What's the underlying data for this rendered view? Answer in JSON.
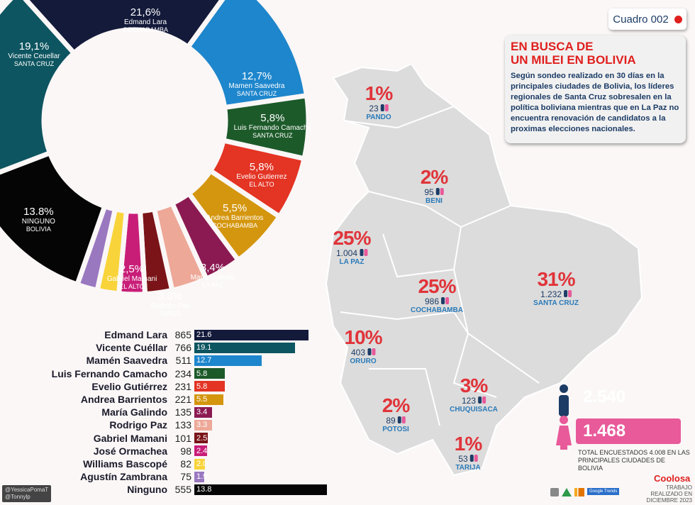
{
  "header": {
    "cuadro": "Cuadro 002",
    "title_line1": "EN BUSCA DE",
    "title_line2": "UN MILEI EN BOLIVIA",
    "description": "Según sondeo realizado en 30 días en la principales ciudades de Bolivia, los líderes regionales de Santa Cruz sobresalen en la política boliviana mientras que en La Paz no encuentra renovación de candidatos a la proximas elecciones nacionales."
  },
  "chart_data": [
    {
      "type": "pie",
      "variant": "donut",
      "slices": [
        {
          "name": "Edmand Lara",
          "region": "COCHABAMBA",
          "value": 21.6,
          "label": "21,6%",
          "color": "#131a3a"
        },
        {
          "name": "Mamen Saavedra",
          "region": "SANTA CRUZ",
          "value": 12.7,
          "label": "12,7%",
          "color": "#1e86cc"
        },
        {
          "name": "Luis Fernando Camacho",
          "region": "SANTA CRUZ",
          "value": 5.8,
          "label": "5,8%",
          "color": "#1d5a2a"
        },
        {
          "name": "Evelio Gutierrez",
          "region": "EL ALTO",
          "value": 5.8,
          "label": "5,8%",
          "color": "#e33424"
        },
        {
          "name": "Andrea Barrientos",
          "region": "COCHABAMBA",
          "value": 5.5,
          "label": "5,5%",
          "color": "#d4960e"
        },
        {
          "name": "María Galindo",
          "region": "LA PAZ",
          "value": 3.4,
          "label": "3,4%",
          "color": "#8b1a52"
        },
        {
          "name": "Rodrigo Paz",
          "region": "TARIJA",
          "value": 3.3,
          "label": "3.3%",
          "color": "#eda898"
        },
        {
          "name": "Gabriel Mamani",
          "region": "EL ALTO",
          "value": 2.5,
          "label": "2,5%",
          "color": "#7a1418"
        },
        {
          "name": "",
          "region": "",
          "value": 2.4,
          "label": "",
          "color": "#c81e78"
        },
        {
          "name": "",
          "region": "",
          "value": 2.0,
          "label": "",
          "color": "#f8d43a"
        },
        {
          "name": "",
          "region": "",
          "value": 1.9,
          "label": "",
          "color": "#9a78c0"
        },
        {
          "name": "NINGUNO",
          "region": "BOLIVIA",
          "value": 13.8,
          "label": "13.8%",
          "color": "#050505"
        },
        {
          "name": "Vicente Ceuellar",
          "region": "SANTA CRUZ",
          "value": 19.1,
          "label": "19,1%",
          "color": "#0d5560"
        }
      ]
    },
    {
      "type": "bar",
      "orientation": "horizontal",
      "rows": [
        {
          "name": "Edmand Lara",
          "count": "865",
          "pct": "21.6",
          "value": 21.6,
          "color": "#131a3a"
        },
        {
          "name": "Vicente Cuéllar",
          "count": "766",
          "pct": "19.1",
          "value": 19.1,
          "color": "#0d5560"
        },
        {
          "name": "Mamén Saavedra",
          "count": "511",
          "pct": "12.7",
          "value": 12.7,
          "color": "#1e86cc"
        },
        {
          "name": "Luis Fernando Camacho",
          "count": "234",
          "pct": "5.8",
          "value": 5.8,
          "color": "#1d5a2a"
        },
        {
          "name": "Evelio Gutiérrez",
          "count": "231",
          "pct": "5.8",
          "value": 5.8,
          "color": "#e33424"
        },
        {
          "name": "Andrea Barrientos",
          "count": "221",
          "pct": "5.5",
          "value": 5.5,
          "color": "#d4960e"
        },
        {
          "name": "María Galindo",
          "count": "135",
          "pct": "3.4",
          "value": 3.4,
          "color": "#8b1a52"
        },
        {
          "name": "Rodrigo Paz",
          "count": "133",
          "pct": "3.3",
          "value": 3.3,
          "color": "#eda898"
        },
        {
          "name": "Gabriel Mamani",
          "count": "101",
          "pct": "2.5",
          "value": 2.5,
          "color": "#7a1418"
        },
        {
          "name": "José Ormachea",
          "count": "98",
          "pct": "2.4",
          "value": 2.4,
          "color": "#c81e78"
        },
        {
          "name": "Williams Bascopé",
          "count": "82",
          "pct": "2.0",
          "value": 2.0,
          "color": "#f8d43a"
        },
        {
          "name": "Agustín Zambrana",
          "count": "75",
          "pct": "1.9",
          "value": 1.9,
          "color": "#9a78c0"
        },
        {
          "name": "Ninguno",
          "count": "555",
          "pct": "13.8",
          "value": 13.8,
          "color": "#050505"
        }
      ]
    }
  ],
  "map": {
    "departments": [
      {
        "name": "PANDO",
        "pct": "1%",
        "count": "23"
      },
      {
        "name": "BENI",
        "pct": "2%",
        "count": "95"
      },
      {
        "name": "LA PAZ",
        "pct": "25%",
        "count": "1.004"
      },
      {
        "name": "COCHABAMBA",
        "pct": "25%",
        "count": "986"
      },
      {
        "name": "SANTA CRUZ",
        "pct": "31%",
        "count": "1.232"
      },
      {
        "name": "ORURO",
        "pct": "10%",
        "count": "403"
      },
      {
        "name": "POTOSI",
        "pct": "2%",
        "count": "89"
      },
      {
        "name": "CHUQUISACA",
        "pct": "3%",
        "count": "123"
      },
      {
        "name": "TARIJA",
        "pct": "1%",
        "count": "53"
      }
    ]
  },
  "totals": {
    "men": "2.540",
    "women": "1.468",
    "men_color": "#1c3c66",
    "women_color": "#e85a9a",
    "note": "TOTAL ENCUESTADOS 4.008 EN LAS PRINCIPALES CIUDADES DE BOLIVIA"
  },
  "footer": {
    "brand": "Coolosa",
    "work": "TRABAJO REALIZADO EN DICIEMBRE 2023",
    "google_trends": "Google Trends",
    "handle1": "@YessicaPomaT",
    "handle2": "@Tonnylp"
  }
}
